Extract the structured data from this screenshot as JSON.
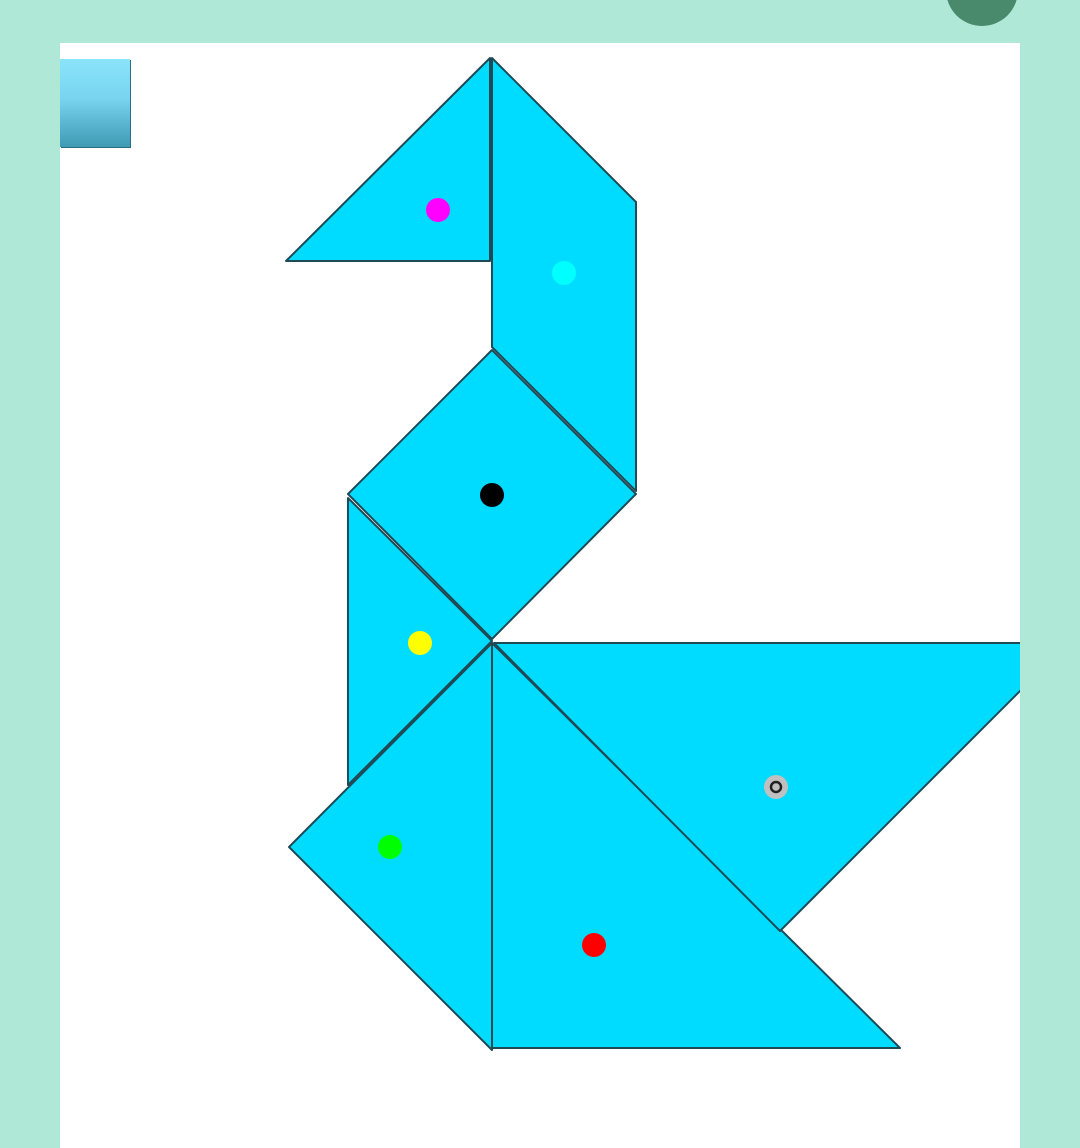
{
  "game": {
    "piece_color": "#00dcff",
    "piece_outline": "#1e4a55",
    "background_color": "#b0e8d8",
    "board_color": "#ffffff",
    "pieces": [
      {
        "id": "head-triangle",
        "shape": "small-triangle",
        "marker_color": "#ff00ff"
      },
      {
        "id": "neck-parallelogram",
        "shape": "parallelogram",
        "marker_color": "#00ffff"
      },
      {
        "id": "body-square",
        "shape": "square",
        "marker_color": "#000000"
      },
      {
        "id": "chest-triangle",
        "shape": "small-triangle",
        "marker_color": "#ffff00"
      },
      {
        "id": "breast-triangle",
        "shape": "medium-triangle",
        "marker_color": "#00ff00"
      },
      {
        "id": "base-triangle",
        "shape": "large-triangle",
        "marker_color": "#ff0000"
      },
      {
        "id": "tail-triangle",
        "shape": "large-triangle",
        "marker_color": "#c0c0c0",
        "selected": true
      }
    ]
  }
}
